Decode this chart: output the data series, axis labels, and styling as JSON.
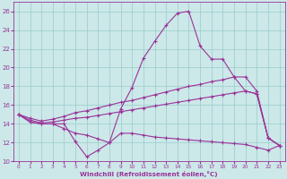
{
  "bg_color": "#cce8e8",
  "line_color": "#993399",
  "grid_color": "#99cccc",
  "xlim_min": -0.5,
  "xlim_max": 23.5,
  "ylim_min": 10,
  "ylim_max": 27,
  "xticks": [
    0,
    1,
    2,
    3,
    4,
    5,
    6,
    7,
    8,
    9,
    10,
    11,
    12,
    13,
    14,
    15,
    16,
    17,
    18,
    19,
    20,
    21,
    22,
    23
  ],
  "yticks": [
    10,
    12,
    14,
    16,
    18,
    20,
    22,
    24,
    26
  ],
  "xlabel": "Windchill (Refroidissement éolien,°C)",
  "line1_y": [
    15.0,
    14.2,
    14.0,
    14.0,
    14.0,
    12.1,
    10.5,
    11.2,
    12.0,
    15.6,
    17.9,
    21.0,
    22.8,
    24.5,
    25.8,
    26.0,
    22.3,
    20.9,
    20.9,
    19.0,
    17.5,
    17.2,
    12.5,
    11.7
  ],
  "line2_y": [
    15.0,
    14.2,
    14.0,
    14.0,
    13.5,
    13.0,
    12.8,
    12.4,
    12.0,
    13.0,
    13.0,
    12.8,
    12.6,
    12.5,
    12.4,
    12.3,
    12.2,
    12.1,
    12.0,
    11.9,
    11.8,
    11.5,
    11.2,
    11.7
  ],
  "line3_y": [
    15.0,
    14.6,
    14.3,
    14.5,
    14.8,
    15.2,
    15.4,
    15.7,
    16.0,
    16.3,
    16.5,
    16.8,
    17.1,
    17.4,
    17.7,
    18.0,
    18.2,
    18.5,
    18.7,
    19.0,
    19.0,
    17.5,
    12.5,
    11.7
  ],
  "line4_y": [
    15.0,
    14.4,
    14.1,
    14.2,
    14.4,
    14.6,
    14.7,
    14.9,
    15.1,
    15.3,
    15.5,
    15.7,
    15.9,
    16.1,
    16.3,
    16.5,
    16.7,
    16.9,
    17.1,
    17.3,
    17.5,
    17.2,
    12.5,
    11.7
  ]
}
